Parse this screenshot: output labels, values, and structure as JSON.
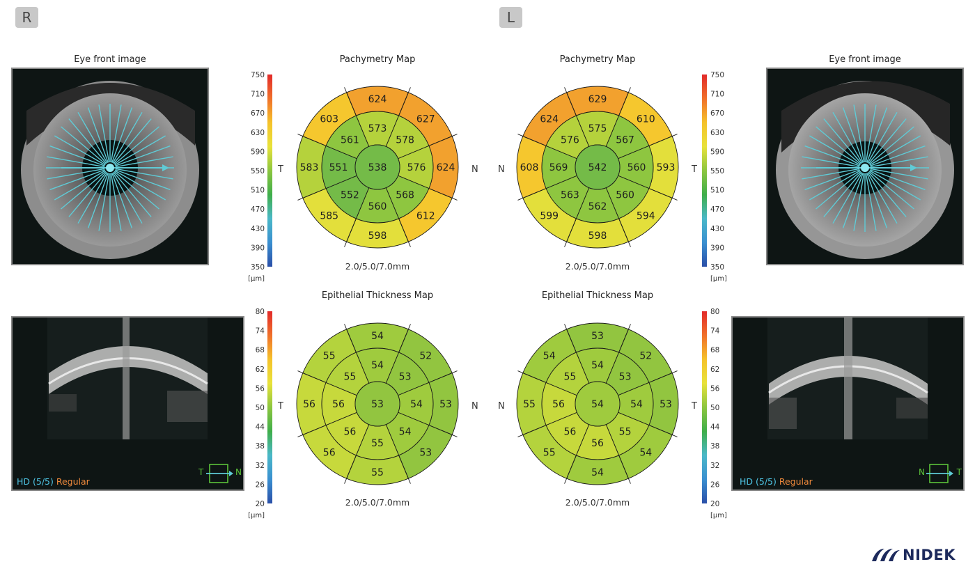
{
  "right_eye": {
    "badge": "R",
    "front_title": "Eye front image",
    "pachy": {
      "title": "Pachymetry Map",
      "sizes": "2.0/5.0/7.0mm",
      "left_label": "T",
      "right_label": "N",
      "center": "538",
      "inner": [
        "573",
        "578",
        "576",
        "568",
        "560",
        "552",
        "551",
        "561"
      ],
      "outer": [
        "624",
        "627",
        "624",
        "612",
        "598",
        "585",
        "583",
        "603"
      ]
    },
    "epi": {
      "title": "Epithelial Thickness Map",
      "sizes": "2.0/5.0/7.0mm",
      "left_label": "T",
      "right_label": "N",
      "center": "53",
      "inner": [
        "54",
        "53",
        "54",
        "54",
        "55",
        "56",
        "56",
        "55"
      ],
      "outer": [
        "54",
        "52",
        "53",
        "53",
        "55",
        "56",
        "56",
        "55"
      ]
    },
    "oct": {
      "hd": "HD (5/5)",
      "mode": "Regular",
      "dir_left": "T",
      "dir_right": "N"
    }
  },
  "left_eye": {
    "badge": "L",
    "front_title": "Eye front image",
    "pachy": {
      "title": "Pachymetry Map",
      "sizes": "2.0/5.0/7.0mm",
      "left_label": "N",
      "right_label": "T",
      "center": "542",
      "inner": [
        "575",
        "567",
        "560",
        "560",
        "562",
        "563",
        "569",
        "576"
      ],
      "outer": [
        "629",
        "610",
        "593",
        "594",
        "598",
        "599",
        "608",
        "624"
      ]
    },
    "epi": {
      "title": "Epithelial Thickness Map",
      "sizes": "2.0/5.0/7.0mm",
      "left_label": "N",
      "right_label": "T",
      "center": "54",
      "inner": [
        "54",
        "53",
        "54",
        "55",
        "56",
        "56",
        "56",
        "55"
      ],
      "outer": [
        "53",
        "52",
        "53",
        "54",
        "54",
        "55",
        "55",
        "54"
      ]
    },
    "oct": {
      "hd": "HD (5/5)",
      "mode": "Regular",
      "dir_left": "N",
      "dir_right": "T"
    }
  },
  "scales": {
    "pachy": {
      "ticks": [
        "750",
        "710",
        "670",
        "630",
        "590",
        "550",
        "510",
        "470",
        "430",
        "390",
        "350"
      ],
      "unit": "[µm]"
    },
    "epi": {
      "ticks": [
        "80",
        "74",
        "68",
        "62",
        "56",
        "50",
        "44",
        "38",
        "32",
        "26",
        "20"
      ],
      "unit": "[µm]"
    }
  },
  "brand": {
    "name": "NIDEK"
  },
  "colors": {
    "scale": [
      "#e22a2a",
      "#f0702a",
      "#f5c22a",
      "#e8e23a",
      "#8cc63f",
      "#3fae4a",
      "#4ab8c8",
      "#3a8fd0",
      "#2a4fa8"
    ]
  }
}
